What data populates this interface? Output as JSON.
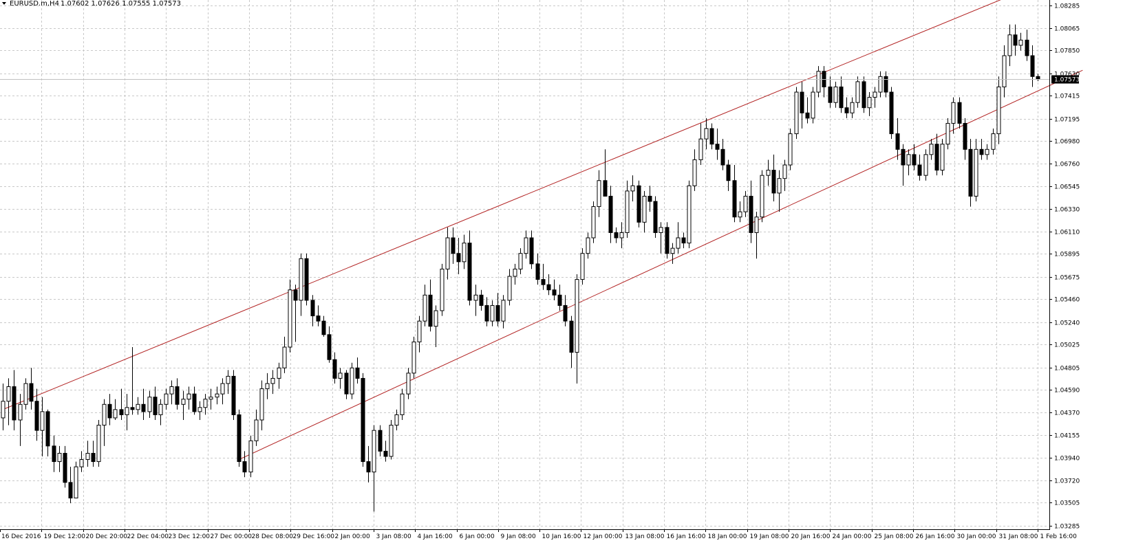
{
  "header": {
    "symbol_timeframe": "EURUSD.m,H4",
    "ohlc": "1.07602 1.07626 1.07555 1.07573"
  },
  "current_price": {
    "label": "1.07573",
    "value": 1.07573
  },
  "colors": {
    "background": "#ffffff",
    "grid": "#c8c8c8",
    "candle": "#000000",
    "channel": "#b22222",
    "price_tag_bg": "#000000",
    "price_tag_text": "#ffffff"
  },
  "chart_data": {
    "type": "candlestick",
    "grid": true,
    "ylim": [
      1.0325,
      1.08335
    ],
    "y_ticks": [
      "1.08285",
      "1.08065",
      "1.07850",
      "1.07630",
      "1.07415",
      "1.07195",
      "1.06980",
      "1.06760",
      "1.06545",
      "1.06330",
      "1.06110",
      "1.05895",
      "1.05675",
      "1.05460",
      "1.05240",
      "1.05025",
      "1.04805",
      "1.04590",
      "1.04370",
      "1.04155",
      "1.03940",
      "1.03720",
      "1.03505",
      "1.03285"
    ],
    "x_ticks": [
      "16 Dec 2016",
      "19 Dec 12:00",
      "20 Dec 20:00",
      "22 Dec 04:00",
      "23 Dec 12:00",
      "27 Dec 00:00",
      "28 Dec 08:00",
      "29 Dec 16:00",
      "2 Jan 00:00",
      "3 Jan 08:00",
      "4 Jan 16:00",
      "6 Jan 00:00",
      "9 Jan 08:00",
      "10 Jan 16:00",
      "12 Jan 00:00",
      "13 Jan 08:00",
      "16 Jan 16:00",
      "18 Jan 00:00",
      "19 Jan 08:00",
      "20 Jan 16:00",
      "24 Jan 00:00",
      "25 Jan 08:00",
      "26 Jan 16:00",
      "30 Jan 00:00",
      "31 Jan 08:00",
      "1 Feb 16:00"
    ],
    "candles": [
      [
        1.0432,
        1.0465,
        1.042,
        1.0448
      ],
      [
        1.0448,
        1.047,
        1.0425,
        1.0462
      ],
      [
        1.0462,
        1.0478,
        1.042,
        1.043
      ],
      [
        1.043,
        1.0455,
        1.0405,
        1.0445
      ],
      [
        1.0445,
        1.047,
        1.044,
        1.0465
      ],
      [
        1.0465,
        1.048,
        1.044,
        1.0448
      ],
      [
        1.0448,
        1.046,
        1.041,
        1.042
      ],
      [
        1.042,
        1.0452,
        1.0395,
        1.0438
      ],
      [
        1.0438,
        1.044,
        1.0395,
        1.0405
      ],
      [
        1.0405,
        1.0415,
        1.038,
        1.039
      ],
      [
        1.039,
        1.0405,
        1.038,
        1.0398
      ],
      [
        1.0398,
        1.0405,
        1.0365,
        1.037
      ],
      [
        1.037,
        1.0385,
        1.035,
        1.0355
      ],
      [
        1.0355,
        1.039,
        1.0355,
        1.0385
      ],
      [
        1.0385,
        1.04,
        1.038,
        1.0392
      ],
      [
        1.0392,
        1.041,
        1.0385,
        1.0398
      ],
      [
        1.0398,
        1.041,
        1.0385,
        1.039
      ],
      [
        1.039,
        1.043,
        1.0385,
        1.0425
      ],
      [
        1.0425,
        1.045,
        1.0405,
        1.0445
      ],
      [
        1.0445,
        1.0455,
        1.0425,
        1.0432
      ],
      [
        1.0432,
        1.045,
        1.043,
        1.044
      ],
      [
        1.044,
        1.046,
        1.043,
        1.0435
      ],
      [
        1.0435,
        1.0455,
        1.042,
        1.0442
      ],
      [
        1.0442,
        1.05,
        1.0435,
        1.044
      ],
      [
        1.044,
        1.0452,
        1.0435,
        1.0445
      ],
      [
        1.0445,
        1.046,
        1.043,
        1.0438
      ],
      [
        1.0438,
        1.0458,
        1.0432,
        1.0452
      ],
      [
        1.0452,
        1.0462,
        1.043,
        1.0435
      ],
      [
        1.0435,
        1.045,
        1.0425,
        1.0445
      ],
      [
        1.0445,
        1.046,
        1.044,
        1.0455
      ],
      [
        1.0455,
        1.0468,
        1.0445,
        1.0462
      ],
      [
        1.0462,
        1.047,
        1.044,
        1.0445
      ],
      [
        1.0445,
        1.0458,
        1.043,
        1.045
      ],
      [
        1.045,
        1.0462,
        1.044,
        1.0455
      ],
      [
        1.0455,
        1.0462,
        1.0435,
        1.0438
      ],
      [
        1.0438,
        1.0448,
        1.043,
        1.0442
      ],
      [
        1.0442,
        1.0455,
        1.0435,
        1.045
      ],
      [
        1.045,
        1.046,
        1.044,
        1.0452
      ],
      [
        1.0452,
        1.0462,
        1.0445,
        1.0455
      ],
      [
        1.0455,
        1.047,
        1.0445,
        1.0465
      ],
      [
        1.0465,
        1.0478,
        1.0455,
        1.0472
      ],
      [
        1.0472,
        1.0478,
        1.043,
        1.0435
      ],
      [
        1.0435,
        1.044,
        1.0385,
        1.039
      ],
      [
        1.039,
        1.04,
        1.0375,
        1.038
      ],
      [
        1.038,
        1.0415,
        1.0375,
        1.041
      ],
      [
        1.041,
        1.044,
        1.0405,
        1.043
      ],
      [
        1.043,
        1.0468,
        1.042,
        1.046
      ],
      [
        1.046,
        1.0475,
        1.045,
        1.0465
      ],
      [
        1.0465,
        1.0478,
        1.0455,
        1.047
      ],
      [
        1.047,
        1.0485,
        1.046,
        1.048
      ],
      [
        1.048,
        1.051,
        1.0475,
        1.05
      ],
      [
        1.05,
        1.0565,
        1.0495,
        1.0555
      ],
      [
        1.0555,
        1.056,
        1.0505,
        1.0545
      ],
      [
        1.0545,
        1.059,
        1.053,
        1.0585
      ],
      [
        1.0585,
        1.059,
        1.054,
        1.0545
      ],
      [
        1.0545,
        1.055,
        1.052,
        1.053
      ],
      [
        1.053,
        1.054,
        1.052,
        1.0525
      ],
      [
        1.0525,
        1.053,
        1.051,
        1.0512
      ],
      [
        1.0512,
        1.052,
        1.0485,
        1.0488
      ],
      [
        1.0488,
        1.0495,
        1.0465,
        1.047
      ],
      [
        1.047,
        1.048,
        1.046,
        1.0475
      ],
      [
        1.0475,
        1.0478,
        1.045,
        1.0455
      ],
      [
        1.0455,
        1.0485,
        1.045,
        1.048
      ],
      [
        1.048,
        1.049,
        1.0465,
        1.047
      ],
      [
        1.047,
        1.0475,
        1.0385,
        1.039
      ],
      [
        1.039,
        1.0405,
        1.037,
        1.038
      ],
      [
        1.038,
        1.0425,
        1.0342,
        1.042
      ],
      [
        1.042,
        1.0425,
        1.0395,
        1.04
      ],
      [
        1.04,
        1.041,
        1.039,
        1.0395
      ],
      [
        1.0395,
        1.043,
        1.0392,
        1.0425
      ],
      [
        1.0425,
        1.044,
        1.042,
        1.0435
      ],
      [
        1.0435,
        1.046,
        1.043,
        1.0455
      ],
      [
        1.0455,
        1.048,
        1.045,
        1.0475
      ],
      [
        1.0475,
        1.051,
        1.047,
        1.0505
      ],
      [
        1.0505,
        1.053,
        1.0495,
        1.0525
      ],
      [
        1.0525,
        1.056,
        1.052,
        1.055
      ],
      [
        1.055,
        1.0565,
        1.0515,
        1.052
      ],
      [
        1.052,
        1.054,
        1.05,
        1.0535
      ],
      [
        1.0535,
        1.058,
        1.053,
        1.0575
      ],
      [
        1.0575,
        1.0615,
        1.0565,
        1.0605
      ],
      [
        1.0605,
        1.0615,
        1.058,
        1.059
      ],
      [
        1.059,
        1.0605,
        1.057,
        1.0582
      ],
      [
        1.0582,
        1.0608,
        1.0575,
        1.06
      ],
      [
        1.06,
        1.0612,
        1.054,
        1.0545
      ],
      [
        1.0545,
        1.056,
        1.053,
        1.055
      ],
      [
        1.055,
        1.0555,
        1.0535,
        1.054
      ],
      [
        1.054,
        1.0548,
        1.052,
        1.0525
      ],
      [
        1.0525,
        1.0545,
        1.052,
        1.054
      ],
      [
        1.054,
        1.0552,
        1.052,
        1.0525
      ],
      [
        1.0525,
        1.055,
        1.0518,
        1.0545
      ],
      [
        1.0545,
        1.0575,
        1.054,
        1.0568
      ],
      [
        1.0568,
        1.058,
        1.056,
        1.0575
      ],
      [
        1.0575,
        1.0595,
        1.057,
        1.059
      ],
      [
        1.059,
        1.0612,
        1.0585,
        1.0605
      ],
      [
        1.0605,
        1.0612,
        1.0575,
        1.058
      ],
      [
        1.058,
        1.059,
        1.056,
        1.0565
      ],
      [
        1.0565,
        1.058,
        1.0555,
        1.056
      ],
      [
        1.056,
        1.057,
        1.055,
        1.0555
      ],
      [
        1.0555,
        1.0565,
        1.0545,
        1.055
      ],
      [
        1.055,
        1.056,
        1.0535,
        1.054
      ],
      [
        1.054,
        1.055,
        1.052,
        1.0525
      ],
      [
        1.0525,
        1.053,
        1.048,
        1.0495
      ],
      [
        1.0495,
        1.057,
        1.0465,
        1.0565
      ],
      [
        1.0565,
        1.0595,
        1.056,
        1.059
      ],
      [
        1.059,
        1.061,
        1.0585,
        1.0605
      ],
      [
        1.0605,
        1.064,
        1.06,
        1.0635
      ],
      [
        1.0635,
        1.067,
        1.0625,
        1.066
      ],
      [
        1.066,
        1.069,
        1.065,
        1.0645
      ],
      [
        1.0645,
        1.0655,
        1.06,
        1.061
      ],
      [
        1.061,
        1.0615,
        1.06,
        1.0605
      ],
      [
        1.0605,
        1.062,
        1.0595,
        1.061
      ],
      [
        1.061,
        1.066,
        1.0605,
        1.065
      ],
      [
        1.065,
        1.0665,
        1.064,
        1.0655
      ],
      [
        1.0655,
        1.066,
        1.0615,
        1.062
      ],
      [
        1.062,
        1.065,
        1.061,
        1.0645
      ],
      [
        1.0645,
        1.0655,
        1.063,
        1.064
      ],
      [
        1.064,
        1.0645,
        1.0605,
        1.061
      ],
      [
        1.061,
        1.062,
        1.059,
        1.0615
      ],
      [
        1.0615,
        1.062,
        1.0585,
        1.059
      ],
      [
        1.059,
        1.06,
        1.058,
        1.0595
      ],
      [
        1.0595,
        1.062,
        1.059,
        1.0605
      ],
      [
        1.0605,
        1.061,
        1.0595,
        1.06
      ],
      [
        1.06,
        1.066,
        1.0595,
        1.0655
      ],
      [
        1.0655,
        1.069,
        1.065,
        1.068
      ],
      [
        1.068,
        1.0715,
        1.0675,
        1.07
      ],
      [
        1.07,
        1.072,
        1.069,
        1.071
      ],
      [
        1.071,
        1.0715,
        1.069,
        1.0695
      ],
      [
        1.0695,
        1.071,
        1.068,
        1.069
      ],
      [
        1.069,
        1.07,
        1.067,
        1.0675
      ],
      [
        1.0675,
        1.068,
        1.065,
        1.066
      ],
      [
        1.066,
        1.0675,
        1.062,
        1.0625
      ],
      [
        1.0625,
        1.064,
        1.062,
        1.063
      ],
      [
        1.063,
        1.065,
        1.0625,
        1.0645
      ],
      [
        1.0645,
        1.066,
        1.06,
        1.061
      ],
      [
        1.061,
        1.063,
        1.0585,
        1.0625
      ],
      [
        1.0625,
        1.067,
        1.062,
        1.0665
      ],
      [
        1.0665,
        1.068,
        1.0655,
        1.067
      ],
      [
        1.067,
        1.0685,
        1.064,
        1.0648
      ],
      [
        1.0648,
        1.067,
        1.063,
        1.0662
      ],
      [
        1.0662,
        1.068,
        1.065,
        1.0675
      ],
      [
        1.0675,
        1.071,
        1.067,
        1.0705
      ],
      [
        1.0705,
        1.075,
        1.07,
        1.0745
      ],
      [
        1.0745,
        1.0755,
        1.071,
        1.0725
      ],
      [
        1.0725,
        1.074,
        1.0715,
        1.072
      ],
      [
        1.072,
        1.075,
        1.0715,
        1.0745
      ],
      [
        1.0745,
        1.077,
        1.074,
        1.0765
      ],
      [
        1.0765,
        1.077,
        1.074,
        1.075
      ],
      [
        1.075,
        1.076,
        1.073,
        1.0735
      ],
      [
        1.0735,
        1.0755,
        1.073,
        1.075
      ],
      [
        1.075,
        1.076,
        1.0725,
        1.073
      ],
      [
        1.073,
        1.074,
        1.072,
        1.0725
      ],
      [
        1.0725,
        1.074,
        1.072,
        1.0735
      ],
      [
        1.0735,
        1.076,
        1.073,
        1.0755
      ],
      [
        1.0755,
        1.076,
        1.0725,
        1.073
      ],
      [
        1.073,
        1.0745,
        1.0722,
        1.074
      ],
      [
        1.074,
        1.075,
        1.073,
        1.0745
      ],
      [
        1.0745,
        1.0765,
        1.074,
        1.076
      ],
      [
        1.076,
        1.0765,
        1.074,
        1.0745
      ],
      [
        1.0745,
        1.075,
        1.07,
        1.0705
      ],
      [
        1.0705,
        1.072,
        1.068,
        1.069
      ],
      [
        1.069,
        1.0695,
        1.0655,
        1.0675
      ],
      [
        1.0675,
        1.069,
        1.0665,
        1.0685
      ],
      [
        1.0685,
        1.0695,
        1.067,
        1.0675
      ],
      [
        1.0675,
        1.0685,
        1.066,
        1.0665
      ],
      [
        1.0665,
        1.069,
        1.066,
        1.0685
      ],
      [
        1.0685,
        1.07,
        1.068,
        1.0695
      ],
      [
        1.0695,
        1.0705,
        1.0665,
        1.067
      ],
      [
        1.067,
        1.07,
        1.0665,
        1.0695
      ],
      [
        1.0695,
        1.072,
        1.069,
        1.0715
      ],
      [
        1.0715,
        1.074,
        1.0705,
        1.0735
      ],
      [
        1.0735,
        1.074,
        1.071,
        1.0715
      ],
      [
        1.0715,
        1.072,
        1.068,
        1.069
      ],
      [
        1.069,
        1.07,
        1.0635,
        1.0645
      ],
      [
        1.0645,
        1.07,
        1.064,
        1.069
      ],
      [
        1.069,
        1.07,
        1.068,
        1.0685
      ],
      [
        1.0685,
        1.0695,
        1.068,
        1.069
      ],
      [
        1.069,
        1.071,
        1.0685,
        1.0705
      ],
      [
        1.0705,
        1.076,
        1.0695,
        1.075
      ],
      [
        1.075,
        1.079,
        1.074,
        1.078
      ],
      [
        1.078,
        1.081,
        1.077,
        1.08
      ],
      [
        1.08,
        1.081,
        1.078,
        1.079
      ],
      [
        1.079,
        1.0802,
        1.0785,
        1.0795
      ],
      [
        1.0795,
        1.0805,
        1.0775,
        1.078
      ],
      [
        1.078,
        1.079,
        1.075,
        1.076
      ],
      [
        1.076,
        1.07626,
        1.07555,
        1.07573
      ]
    ],
    "channel_lines": [
      {
        "name": "upper",
        "from": {
          "bar": 0,
          "price": 1.044
        },
        "to": {
          "bar": 178,
          "price": 1.0835
        }
      },
      {
        "name": "lower",
        "from": {
          "bar": 42,
          "price": 1.0392
        },
        "to": {
          "bar": 192,
          "price": 1.0766
        }
      }
    ]
  }
}
